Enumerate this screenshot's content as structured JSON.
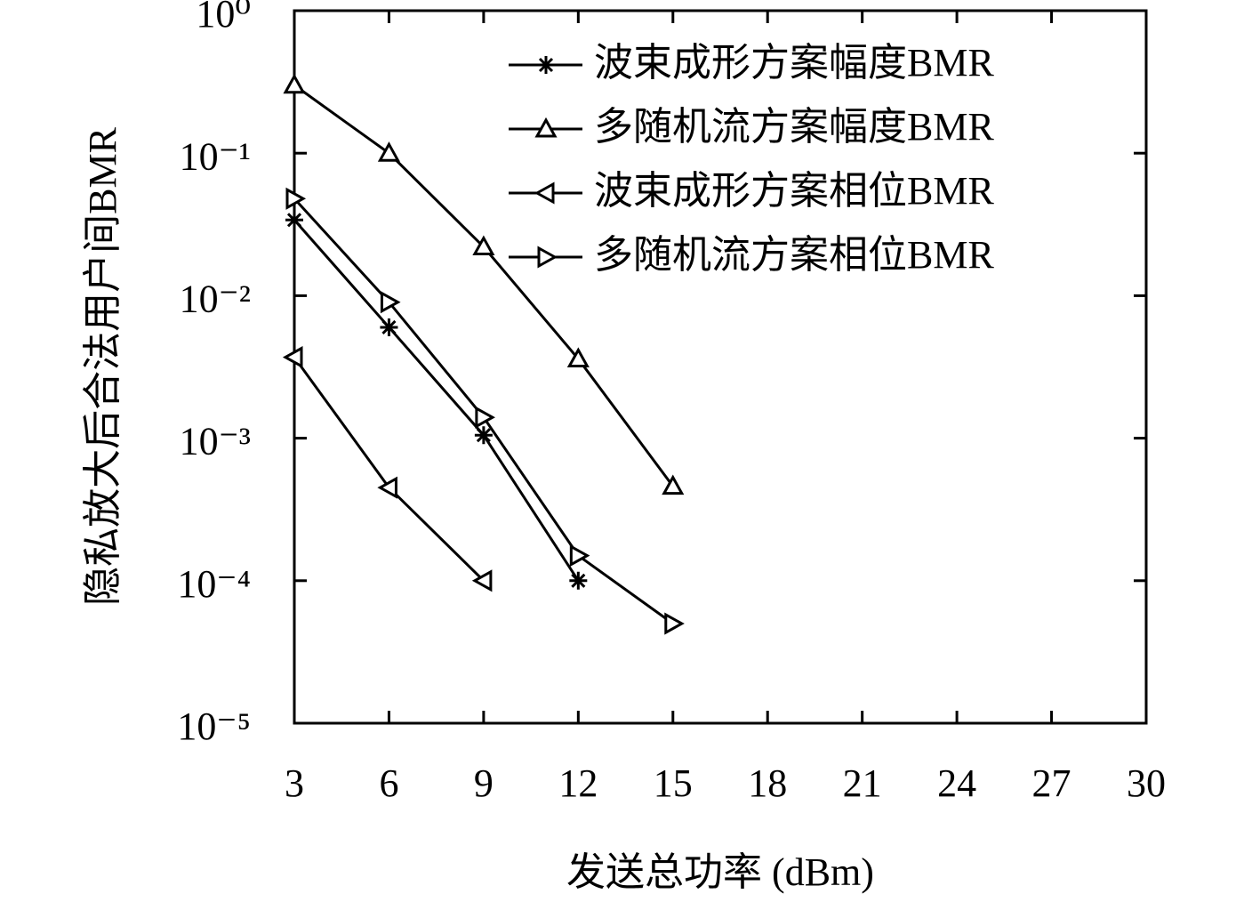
{
  "chart_data": {
    "type": "line",
    "xlabel": "发送总功率 (dBm)",
    "ylabel": "隐私放大后合法用户间BMR",
    "xlim": [
      3,
      30
    ],
    "xticks": [
      3,
      6,
      9,
      12,
      15,
      18,
      21,
      24,
      27,
      30
    ],
    "ylim": [
      1e-05,
      1
    ],
    "yscale": "log",
    "yticks": [
      {
        "value": 1,
        "label": "10⁰"
      },
      {
        "value": 0.1,
        "label": "10⁻¹"
      },
      {
        "value": 0.01,
        "label": "10⁻²"
      },
      {
        "value": 0.001,
        "label": "10⁻³"
      },
      {
        "value": 0.0001,
        "label": "10⁻⁴"
      },
      {
        "value": 1e-05,
        "label": "10⁻⁵"
      }
    ],
    "legend": "upper right",
    "series": [
      {
        "name": "波束成形方案幅度BMR",
        "color": "#000000",
        "marker": "star",
        "x": [
          3,
          6,
          9,
          12
        ],
        "values": [
          0.034,
          0.006,
          0.00105,
          0.0001
        ]
      },
      {
        "name": "多随机流方案幅度BMR",
        "color": "#000000",
        "marker": "triangle-up",
        "x": [
          3,
          6,
          9,
          12,
          15
        ],
        "values": [
          0.3,
          0.1,
          0.022,
          0.0036,
          0.00046
        ]
      },
      {
        "name": "波束成形方案相位BMR",
        "color": "#000000",
        "marker": "triangle-left",
        "x": [
          3,
          6,
          9
        ],
        "values": [
          0.0037,
          0.00045,
          0.0001
        ]
      },
      {
        "name": "多随机流方案相位BMR",
        "color": "#000000",
        "marker": "triangle-right",
        "x": [
          3,
          6,
          9,
          12,
          15
        ],
        "values": [
          0.048,
          0.009,
          0.0014,
          0.00015,
          5e-05
        ]
      }
    ]
  }
}
